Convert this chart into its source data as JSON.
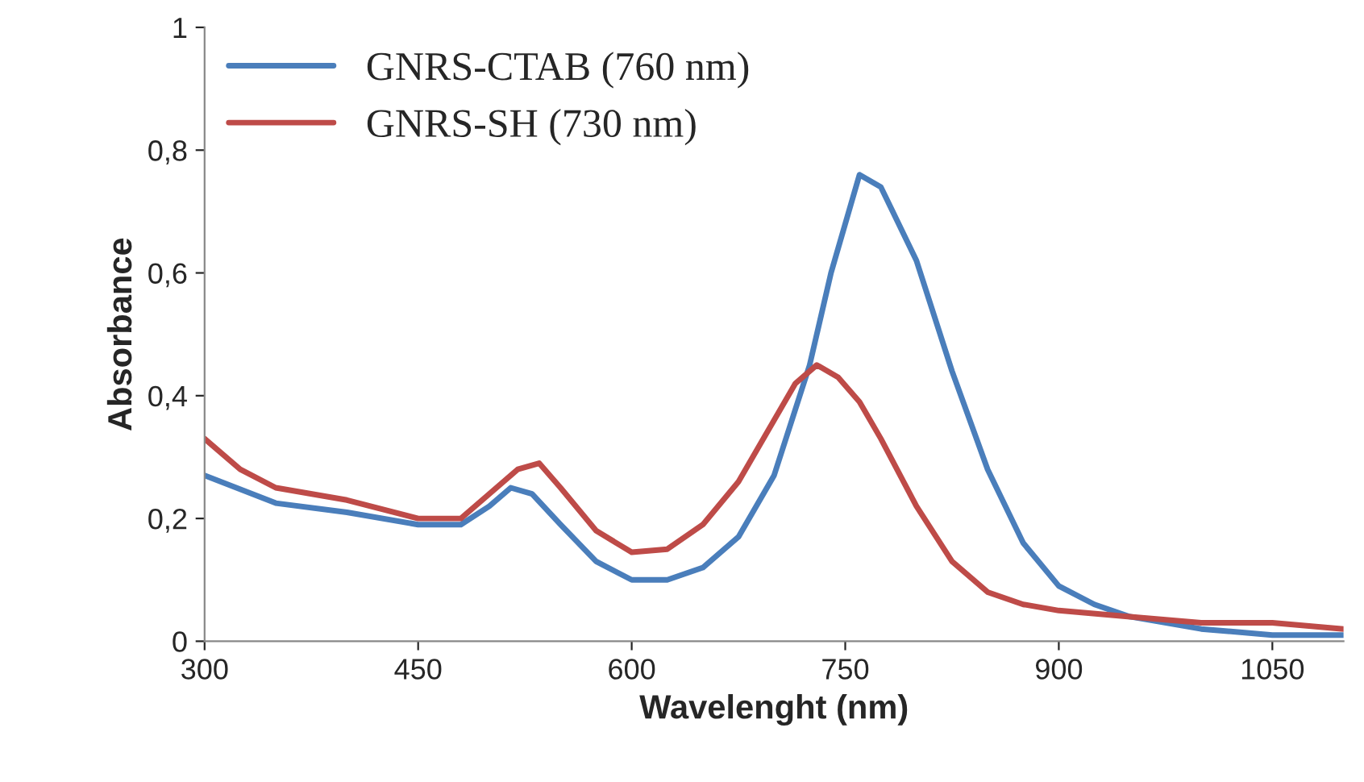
{
  "chart_data": {
    "type": "line",
    "xlabel": "Wavelenght (nm)",
    "ylabel": "Absorbance",
    "xlim": [
      300,
      1100
    ],
    "xticks": [
      300,
      450,
      600,
      750,
      900,
      1050
    ],
    "ylim": [
      0,
      1
    ],
    "yticks": [
      0,
      {
        "value": 0.2,
        "label": "0,2"
      },
      {
        "value": 0.4,
        "label": "0,4"
      },
      {
        "value": 0.6,
        "label": "0,6"
      },
      {
        "value": 0.8,
        "label": "0,8"
      },
      1
    ],
    "grid": false,
    "legend": "top left",
    "marker": "none",
    "line_style": "solid",
    "series": [
      {
        "name": "GNRS-CTAB (760 nm)",
        "color": "#4a7ebb",
        "x": [
          300,
          350,
          400,
          450,
          480,
          500,
          515,
          530,
          550,
          575,
          600,
          625,
          650,
          675,
          700,
          725,
          740,
          760,
          775,
          800,
          825,
          850,
          875,
          900,
          925,
          950,
          1000,
          1050,
          1100
        ],
        "values": [
          0.27,
          0.225,
          0.21,
          0.19,
          0.19,
          0.22,
          0.25,
          0.24,
          0.19,
          0.13,
          0.1,
          0.1,
          0.12,
          0.17,
          0.27,
          0.45,
          0.6,
          0.76,
          0.74,
          0.62,
          0.44,
          0.28,
          0.16,
          0.09,
          0.06,
          0.04,
          0.02,
          0.01,
          0.01
        ]
      },
      {
        "name": "GNRS-SH (730 nm)",
        "color": "#be4b48",
        "x": [
          300,
          325,
          350,
          400,
          450,
          480,
          500,
          520,
          535,
          550,
          575,
          600,
          625,
          650,
          675,
          700,
          715,
          730,
          745,
          760,
          775,
          800,
          825,
          850,
          875,
          900,
          950,
          1000,
          1050,
          1100
        ],
        "values": [
          0.33,
          0.28,
          0.25,
          0.23,
          0.2,
          0.2,
          0.24,
          0.28,
          0.29,
          0.25,
          0.18,
          0.145,
          0.15,
          0.19,
          0.26,
          0.36,
          0.42,
          0.45,
          0.43,
          0.39,
          0.33,
          0.22,
          0.13,
          0.08,
          0.06,
          0.05,
          0.04,
          0.03,
          0.03,
          0.02
        ]
      }
    ]
  }
}
